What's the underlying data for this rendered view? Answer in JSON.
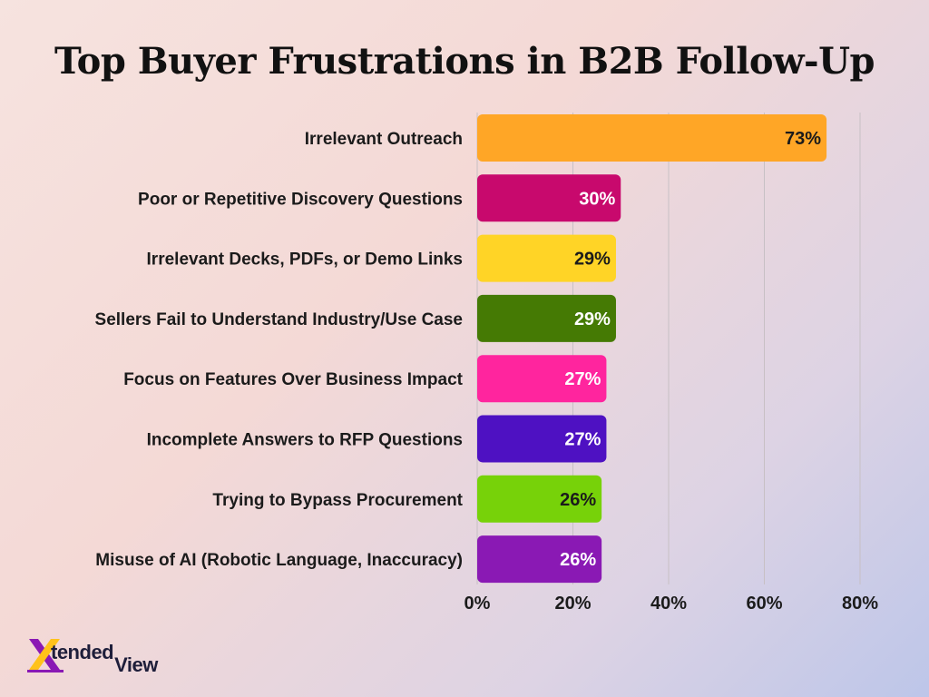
{
  "chart_data": {
    "type": "bar",
    "orientation": "horizontal",
    "title": "Top Buyer Frustrations in B2B Follow-Up",
    "xlabel": "",
    "ylabel": "",
    "xlim": [
      0,
      80
    ],
    "x_ticks": [
      0,
      20,
      40,
      60,
      80
    ],
    "x_tick_labels": [
      "0%",
      "20%",
      "40%",
      "60%",
      "80%"
    ],
    "grid": true,
    "legend": "none",
    "categories": [
      "Irrelevant Outreach",
      "Poor or Repetitive Discovery Questions",
      "Irrelevant Decks, PDFs, or Demo Links",
      "Sellers Fail to Understand Industry/Use Case",
      "Focus on Features Over Business Impact",
      "Incomplete Answers to RFP Questions",
      "Trying to Bypass Procurement",
      "Misuse of AI (Robotic Language, Inaccuracy)"
    ],
    "values": [
      73,
      30,
      29,
      29,
      27,
      27,
      26,
      26
    ],
    "value_labels": [
      "73%",
      "30%",
      "29%",
      "29%",
      "27%",
      "27%",
      "26%",
      "26%"
    ],
    "colors": [
      "#ffa626",
      "#c8096d",
      "#ffd426",
      "#457a04",
      "#ff259e",
      "#4e11c2",
      "#77d209",
      "#8a19b4"
    ],
    "label_colors": [
      "#1b1b1b",
      "#ffffff",
      "#1b1b1b",
      "#ffffff",
      "#ffffff",
      "#ffffff",
      "#1b1b1b",
      "#ffffff"
    ]
  },
  "branding": {
    "logo_letter": "X",
    "logo_text_a": "tended",
    "logo_text_b": "View",
    "logo_colors": [
      "#8a19b4",
      "#ffc21a"
    ]
  }
}
